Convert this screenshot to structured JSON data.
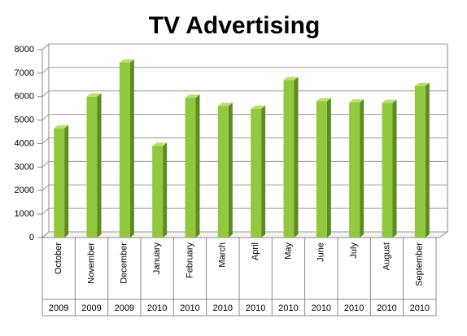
{
  "chart_data": {
    "type": "bar3d",
    "title": "TV Advertising",
    "categories": [
      "October",
      "November",
      "December",
      "January",
      "February",
      "March",
      "April",
      "May",
      "June",
      "July",
      "August",
      "September"
    ],
    "category_groups": [
      "2009",
      "2009",
      "2009",
      "2010",
      "2010",
      "2010",
      "2010",
      "2010",
      "2010",
      "2010",
      "2010",
      "2010"
    ],
    "values": [
      4650,
      6000,
      7450,
      3900,
      5950,
      5600,
      5480,
      6700,
      5800,
      5750,
      5730,
      6450
    ],
    "color": "#92c83e",
    "ylim": [
      0,
      8000
    ],
    "yticks": [
      0,
      1000,
      2000,
      3000,
      4000,
      5000,
      6000,
      7000,
      8000
    ],
    "grid": true
  }
}
